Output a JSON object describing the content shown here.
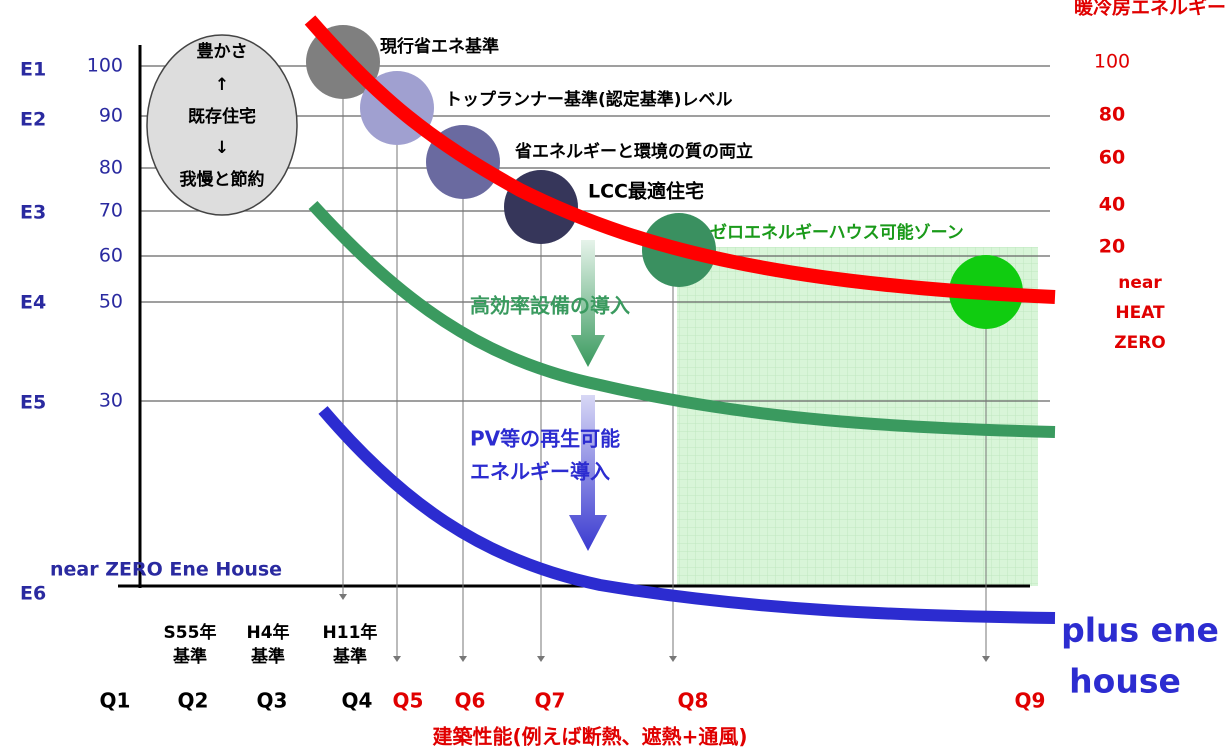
{
  "left_axis": {
    "codes": [
      "E1",
      "E2",
      "E3",
      "E4",
      "E5",
      "E6"
    ],
    "levels": [
      100,
      90,
      80,
      70,
      60,
      50,
      30
    ]
  },
  "right_axis": {
    "title": "暖冷房エネルギー",
    "levels": [
      100,
      80,
      60,
      40,
      20
    ],
    "zero_label": [
      "near",
      "HEAT",
      "ZERO"
    ]
  },
  "oval": {
    "lines": [
      "豊かさ",
      "↑",
      "既存住宅",
      "↓",
      "我慢と節約"
    ]
  },
  "stages": [
    "現行省エネ基準",
    "トップランナー基準(認定基準)レベル",
    "省エネルギーと環境の質の両立",
    "LCC最適住宅",
    "ゼロエネルギーハウス可能ゾーン"
  ],
  "arrows": {
    "efficiency": "高効率設備の導入",
    "renewable": [
      "PV等の再生可能",
      "エネルギー導入"
    ]
  },
  "near_zero": "near ZERO Ene House",
  "plus": [
    "plus ene",
    "house"
  ],
  "standards": [
    [
      "S55年",
      "基準"
    ],
    [
      "H4年",
      "基準"
    ],
    [
      "H11年",
      "基準"
    ]
  ],
  "x_axis": {
    "quality": [
      "Q1",
      "Q2",
      "Q3",
      "Q4",
      "Q5",
      "Q6",
      "Q7",
      "Q8",
      "Q9"
    ],
    "title": "建築性能(例えば断熱、遮熱+通風)"
  }
}
